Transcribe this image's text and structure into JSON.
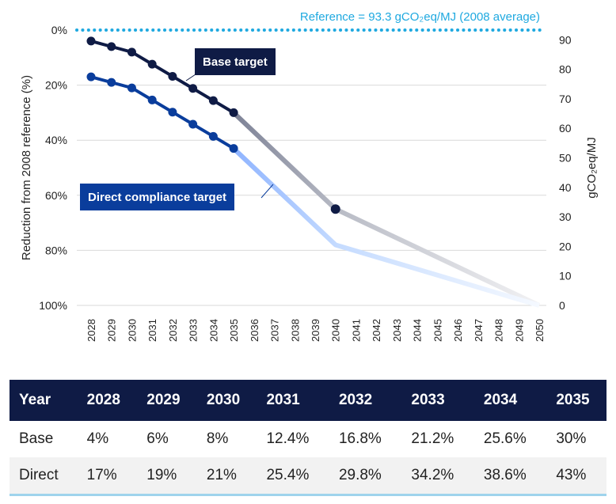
{
  "chart_data": {
    "type": "line",
    "x": [
      2028,
      2029,
      2030,
      2031,
      2032,
      2033,
      2034,
      2035,
      2036,
      2037,
      2038,
      2039,
      2040,
      2041,
      2042,
      2043,
      2044,
      2045,
      2046,
      2047,
      2048,
      2049,
      2050
    ],
    "ylabel": "Reduction from 2008 reference (%)",
    "ylabel_right": "gCO₂eq/MJ",
    "ylim": [
      0,
      100
    ],
    "y_inverted": true,
    "y_ticks": [
      "0%",
      "20%",
      "40%",
      "60%",
      "80%",
      "100%"
    ],
    "y_right_ticks": [
      "90",
      "80",
      "70",
      "60",
      "50",
      "40",
      "30",
      "20",
      "10",
      "0"
    ],
    "y_right_lim": [
      0,
      93.3
    ],
    "reference": {
      "label": "Reference = 93.3 gCO₂eq/MJ (2008 average)",
      "value": 0,
      "color": "#1fa9e0"
    },
    "series": [
      {
        "name": "Base target",
        "color": "#0f1b45",
        "fade_color": "#b9bcc6",
        "points": [
          [
            2028,
            4
          ],
          [
            2029,
            6
          ],
          [
            2030,
            8
          ],
          [
            2031,
            12.4
          ],
          [
            2032,
            16.8
          ],
          [
            2033,
            21.2
          ],
          [
            2034,
            25.6
          ],
          [
            2035,
            30
          ]
        ],
        "projection": [
          [
            2035,
            30
          ],
          [
            2040,
            65
          ],
          [
            2050,
            100
          ]
        ],
        "marker_2040": true
      },
      {
        "name": "Direct compliance target",
        "color": "#0a3d9c",
        "fade_color": "#c6dcff",
        "points": [
          [
            2028,
            17
          ],
          [
            2029,
            19
          ],
          [
            2030,
            21
          ],
          [
            2031,
            25.4
          ],
          [
            2032,
            29.8
          ],
          [
            2033,
            34.2
          ],
          [
            2034,
            38.6
          ],
          [
            2035,
            43
          ]
        ],
        "projection": [
          [
            2035,
            43
          ],
          [
            2040,
            78
          ],
          [
            2050,
            100
          ]
        ],
        "marker_2040": false
      }
    ],
    "grid": true
  },
  "table": {
    "header": [
      "Year",
      "2028",
      "2029",
      "2030",
      "2031",
      "2032",
      "2033",
      "2034",
      "2035"
    ],
    "rows": [
      [
        "Base",
        "4%",
        "6%",
        "8%",
        "12.4%",
        "16.8%",
        "21.2%",
        "25.6%",
        "30%"
      ],
      [
        "Direct",
        "17%",
        "19%",
        "21%",
        "25.4%",
        "29.8%",
        "34.2%",
        "38.6%",
        "43%"
      ]
    ]
  }
}
